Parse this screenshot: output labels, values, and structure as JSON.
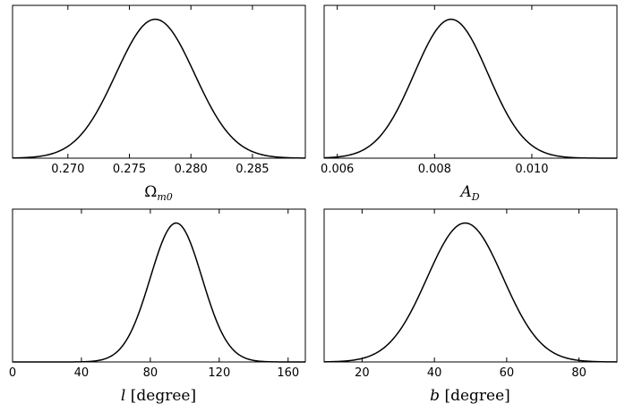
{
  "chart_data": [
    {
      "type": "line",
      "xlabel": "Ω_m0",
      "x_ticks": [
        0.27,
        0.275,
        0.28,
        0.285
      ],
      "x_tick_labels": [
        "0.270",
        "0.275",
        "0.280",
        "0.285"
      ],
      "xlim": [
        0.2655,
        0.2893
      ],
      "ylim": [
        0,
        1.1
      ],
      "curve": {
        "shape": "gaussian",
        "mean": 0.2771,
        "sigma": 0.0032,
        "peak": 1.0
      },
      "y_ticks_shown": false,
      "grid": false
    },
    {
      "type": "line",
      "xlabel": "A_D",
      "x_ticks": [
        0.006,
        0.008,
        0.01
      ],
      "x_tick_labels": [
        "0.006",
        "0.008",
        "0.010"
      ],
      "xlim": [
        0.00573,
        0.01175
      ],
      "ylim": [
        0,
        1.1
      ],
      "curve": {
        "shape": "gaussian",
        "mean": 0.00834,
        "sigma": 0.00076,
        "peak": 1.0
      },
      "y_ticks_shown": false,
      "grid": false
    },
    {
      "type": "line",
      "xlabel": "l [degree]",
      "x_ticks": [
        0,
        40,
        80,
        120,
        160
      ],
      "x_tick_labels": [
        "0",
        "40",
        "80",
        "120",
        "160"
      ],
      "xlim": [
        0,
        170
      ],
      "ylim": [
        0,
        1.1
      ],
      "curve": {
        "shape": "gaussian",
        "mean": 95,
        "sigma": 15,
        "peak": 1.0
      },
      "y_ticks_shown": false,
      "grid": false
    },
    {
      "type": "line",
      "xlabel": "b [degree]",
      "x_ticks": [
        20,
        40,
        60,
        80
      ],
      "x_tick_labels": [
        "20",
        "40",
        "60",
        "80"
      ],
      "xlim": [
        9.5,
        90.5
      ],
      "ylim": [
        0,
        1.1
      ],
      "curve": {
        "shape": "gaussian",
        "mean": 48.5,
        "sigma": 10.5,
        "peak": 1.0
      },
      "y_ticks_shown": false,
      "grid": false
    }
  ],
  "style": {
    "line_color": "#000000",
    "axes_color": "#000000",
    "background": "#ffffff"
  }
}
